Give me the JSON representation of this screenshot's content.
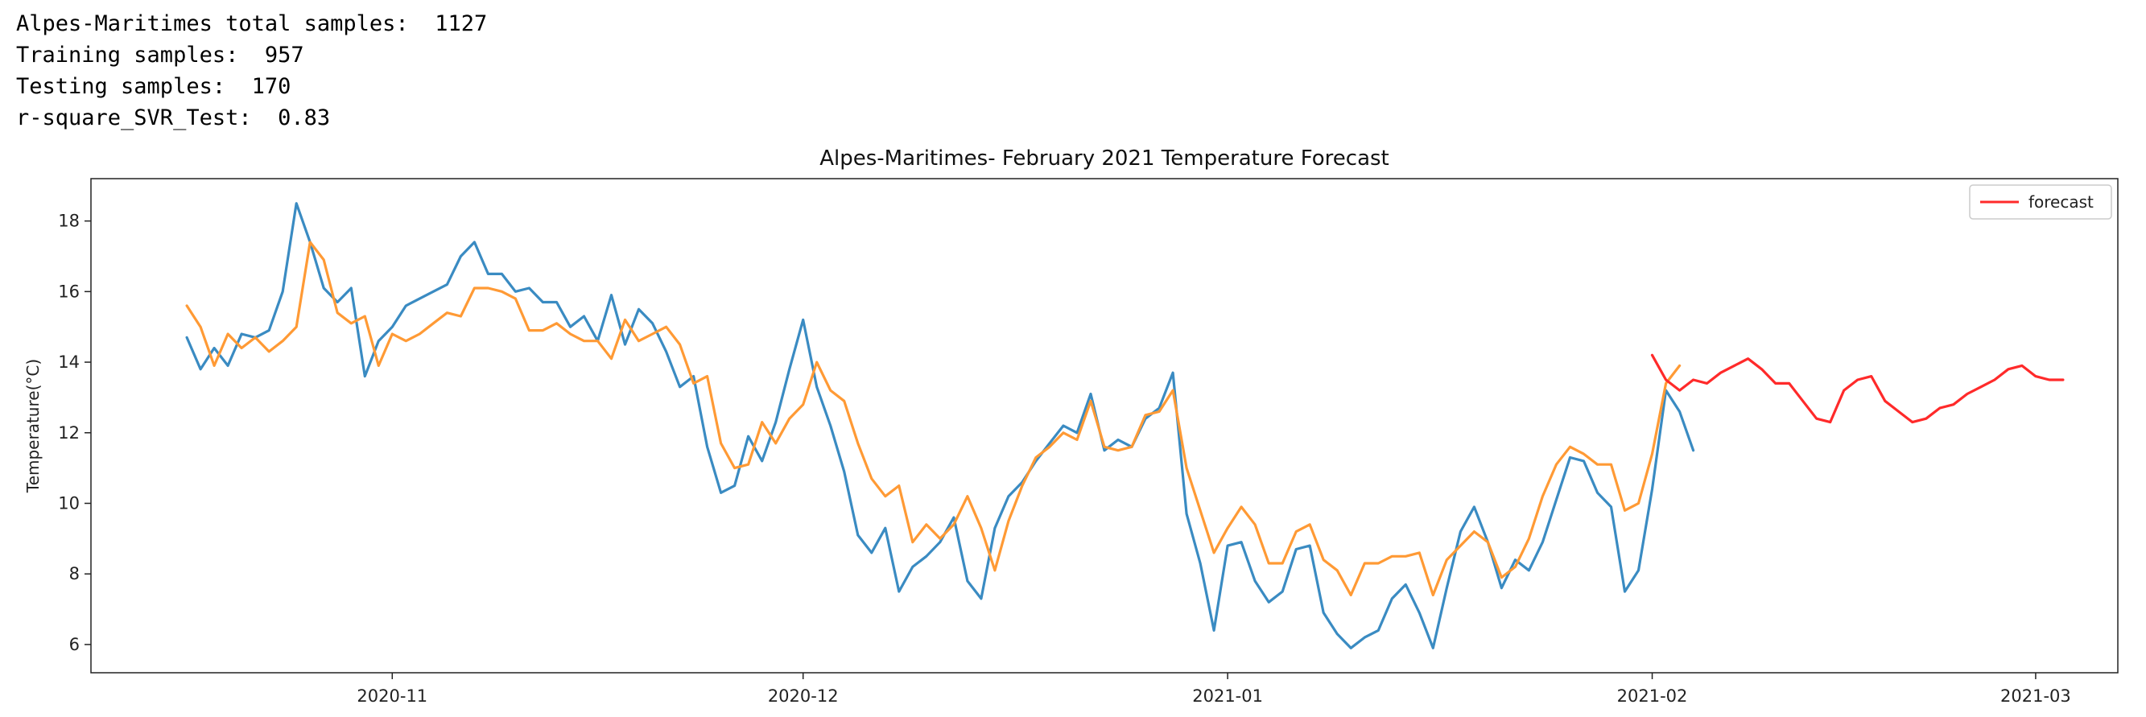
{
  "console": {
    "lines": [
      {
        "label": "Alpes-Maritimes total samples:",
        "value": "1127"
      },
      {
        "label": "Training samples:",
        "value": "957"
      },
      {
        "label": "Testing samples:",
        "value": "170"
      },
      {
        "label": "r-square_SVR_Test:",
        "value": "0.83"
      }
    ]
  },
  "chart_data": {
    "type": "line",
    "title": "Alpes-Maritimes- February 2021 Temperature Forecast",
    "xlabel": "",
    "ylabel": "Temperature(°C)",
    "x_range": [
      "2020-10-10",
      "2021-03-07"
    ],
    "ylim": [
      5.2,
      19.2
    ],
    "yticks": [
      6,
      8,
      10,
      12,
      14,
      16,
      18
    ],
    "xticks": [
      "2020-11-01",
      "2020-12-01",
      "2021-01-01",
      "2021-02-01",
      "2021-03-01"
    ],
    "xtick_labels": [
      "2020-11",
      "2020-12",
      "2021-01",
      "2021-02",
      "2021-03"
    ],
    "grid": false,
    "legend_position": "top-right",
    "series": [
      {
        "color": "#3a8bc2",
        "start": "2020-10-17",
        "values": [
          14.7,
          13.8,
          14.4,
          13.9,
          14.8,
          14.7,
          14.9,
          16.0,
          18.5,
          17.4,
          16.1,
          15.7,
          16.1,
          13.6,
          14.6,
          15.0,
          15.6,
          15.8,
          16.0,
          16.2,
          17.0,
          17.4,
          16.5,
          16.5,
          16.0,
          16.1,
          15.7,
          15.7,
          15.0,
          15.3,
          14.6,
          15.9,
          14.5,
          15.5,
          15.1,
          14.3,
          13.3,
          13.6,
          11.6,
          10.3,
          10.5,
          11.9,
          11.2,
          12.3,
          13.8,
          15.2,
          13.3,
          12.2,
          10.9,
          9.1,
          8.6,
          9.3,
          7.5,
          8.2,
          8.5,
          8.9,
          9.6,
          7.8,
          7.3,
          9.3,
          10.2,
          10.6,
          11.2,
          11.7,
          12.2,
          12.0,
          13.1,
          11.5,
          11.8,
          11.6,
          12.4,
          12.7,
          13.7,
          9.7,
          8.3,
          6.4,
          8.8,
          8.9,
          7.8,
          7.2,
          7.5,
          8.7,
          8.8,
          6.9,
          6.3,
          5.9,
          6.2,
          6.4,
          7.3,
          7.7,
          6.9,
          5.9,
          7.6,
          9.2,
          9.9,
          8.9,
          7.6,
          8.4,
          8.1,
          8.9,
          10.1,
          11.3,
          11.2,
          10.3,
          9.9,
          7.5,
          8.1,
          10.4,
          13.2,
          12.6,
          11.5
        ]
      },
      {
        "color": "#ff9a35",
        "start": "2020-10-17",
        "values": [
          15.6,
          15.0,
          13.9,
          14.8,
          14.4,
          14.7,
          14.3,
          14.6,
          15.0,
          17.4,
          16.9,
          15.4,
          15.1,
          15.3,
          13.9,
          14.8,
          14.6,
          14.8,
          15.1,
          15.4,
          15.3,
          16.1,
          16.1,
          16.0,
          15.8,
          14.9,
          14.9,
          15.1,
          14.8,
          14.6,
          14.6,
          14.1,
          15.2,
          14.6,
          14.8,
          15.0,
          14.5,
          13.4,
          13.6,
          11.7,
          11.0,
          11.1,
          12.3,
          11.7,
          12.4,
          12.8,
          14.0,
          13.2,
          12.9,
          11.7,
          10.7,
          10.2,
          10.5,
          8.9,
          9.4,
          9.0,
          9.4,
          10.2,
          9.3,
          8.1,
          9.5,
          10.5,
          11.3,
          11.6,
          12.0,
          11.8,
          12.9,
          11.6,
          11.5,
          11.6,
          12.5,
          12.6,
          13.2,
          11.0,
          9.8,
          8.6,
          9.3,
          9.9,
          9.4,
          8.3,
          8.3,
          9.2,
          9.4,
          8.4,
          8.1,
          7.4,
          8.3,
          8.3,
          8.5,
          8.5,
          8.6,
          7.4,
          8.4,
          8.8,
          9.2,
          8.9,
          7.9,
          8.2,
          9.0,
          10.2,
          11.1,
          11.6,
          11.4,
          11.1,
          11.1,
          9.8,
          10.0,
          11.4,
          13.4,
          13.9
        ]
      },
      {
        "name": "forecast",
        "color": "#ff2a2a",
        "start": "2021-02-01",
        "values": [
          14.2,
          13.5,
          13.2,
          13.5,
          13.4,
          13.7,
          13.9,
          14.1,
          13.8,
          13.4,
          13.4,
          12.9,
          12.4,
          12.3,
          13.2,
          13.5,
          13.6,
          12.9,
          12.6,
          12.3,
          12.4,
          12.7,
          12.8,
          13.1,
          13.3,
          13.5,
          13.8,
          13.9,
          13.6,
          13.5,
          13.5
        ]
      }
    ]
  }
}
